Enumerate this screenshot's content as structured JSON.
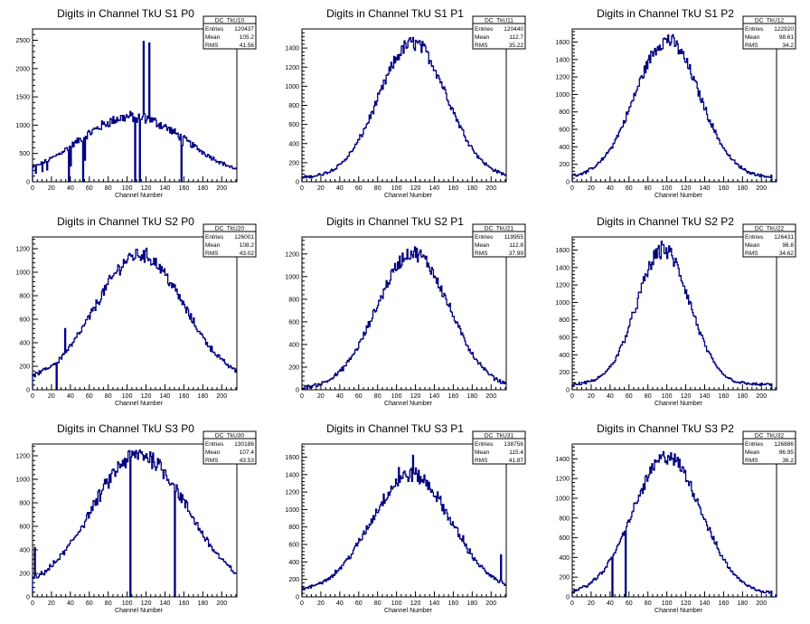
{
  "line_color": "#000080",
  "chart_data": [
    {
      "type": "line",
      "title": "Digits in Channel TkU S1 P0",
      "xlabel": "Channel Number",
      "ylabel": "",
      "xlim": [
        0,
        216
      ],
      "ylim": [
        0,
        2700
      ],
      "xticks": [
        0,
        20,
        40,
        60,
        80,
        100,
        120,
        140,
        160,
        180,
        200
      ],
      "yticks": [
        0,
        500,
        1000,
        1500,
        2000,
        2500
      ],
      "stats": {
        "name": "DC_TkU10",
        "entries": "120437",
        "mean": "105.2",
        "rms": "41.56"
      },
      "profile": {
        "center": 105,
        "sigma": 58,
        "peak": 1150,
        "base": 40,
        "noise": 0.08,
        "start": 0,
        "end": 215
      },
      "spikes": [
        {
          "x": 3,
          "y": 150
        },
        {
          "x": 10,
          "y": 180
        },
        {
          "x": 15,
          "y": 210
        },
        {
          "x": 40,
          "y": 280
        },
        {
          "x": 55,
          "y": 380
        },
        {
          "x": 110,
          "y": 1050
        },
        {
          "x": 114,
          "y": 1100
        },
        {
          "x": 117,
          "y": 2480
        },
        {
          "x": 123,
          "y": 2450
        },
        {
          "x": 158,
          "y": 640
        }
      ],
      "dips": [
        {
          "x": 38,
          "y": 0
        },
        {
          "x": 53,
          "y": 0
        },
        {
          "x": 108,
          "y": 0
        },
        {
          "x": 113,
          "y": 0
        },
        {
          "x": 157,
          "y": 0
        }
      ]
    },
    {
      "type": "line",
      "title": "Digits in Channel TkU S1 P1",
      "xlabel": "Channel Number",
      "ylabel": "",
      "xlim": [
        0,
        216
      ],
      "ylim": [
        0,
        1600
      ],
      "xticks": [
        0,
        20,
        40,
        60,
        80,
        100,
        120,
        140,
        160,
        180,
        200
      ],
      "yticks": [
        0,
        200,
        400,
        600,
        800,
        1000,
        1200,
        1400
      ],
      "stats": {
        "name": "DC_TkU11",
        "entries": "120440",
        "mean": "112.7",
        "rms": "35.22"
      },
      "profile": {
        "center": 117,
        "sigma": 36,
        "peak": 1450,
        "base": 40,
        "noise": 0.05,
        "start": 0,
        "end": 215
      },
      "spikes": [
        {
          "x": 117,
          "y": 1510
        }
      ],
      "dips": []
    },
    {
      "type": "line",
      "title": "Digits in Channel TkU S1 P2",
      "xlabel": "Channel Number",
      "ylabel": "",
      "xlim": [
        0,
        216
      ],
      "ylim": [
        0,
        1750
      ],
      "xticks": [
        0,
        20,
        40,
        60,
        80,
        100,
        120,
        140,
        160,
        180,
        200
      ],
      "yticks": [
        0,
        200,
        400,
        600,
        800,
        1000,
        1200,
        1400,
        1600
      ],
      "stats": {
        "name": "DC_TkU12",
        "entries": "122920",
        "mean": "98.61",
        "rms": "34.2"
      },
      "profile": {
        "center": 100,
        "sigma": 34,
        "peak": 1620,
        "base": 50,
        "noise": 0.05,
        "start": 0,
        "end": 210
      },
      "spikes": [
        {
          "x": 101,
          "y": 1680
        }
      ],
      "dips": []
    },
    {
      "type": "line",
      "title": "Digits in Channel TkU S2 P0",
      "xlabel": "Channel Number",
      "ylabel": "",
      "xlim": [
        0,
        216
      ],
      "ylim": [
        0,
        1300
      ],
      "xticks": [
        0,
        20,
        40,
        60,
        80,
        100,
        120,
        140,
        160,
        180,
        200
      ],
      "yticks": [
        0,
        200,
        400,
        600,
        800,
        1000,
        1200
      ],
      "stats": {
        "name": "DC_TkU20",
        "entries": "126001",
        "mean": "108.2",
        "rms": "43.02"
      },
      "profile": {
        "center": 113,
        "sigma": 46,
        "peak": 1150,
        "base": 70,
        "noise": 0.05,
        "start": 0,
        "end": 215
      },
      "spikes": [
        {
          "x": 34,
          "y": 520
        },
        {
          "x": 27,
          "y": 230
        }
      ],
      "dips": [
        {
          "x": 25,
          "y": 0
        }
      ]
    },
    {
      "type": "line",
      "title": "Digits in Channel TkU S2 P1",
      "xlabel": "Channel Number",
      "ylabel": "",
      "xlim": [
        0,
        216
      ],
      "ylim": [
        0,
        1350
      ],
      "xticks": [
        0,
        20,
        40,
        60,
        80,
        100,
        120,
        140,
        160,
        180,
        200
      ],
      "yticks": [
        0,
        200,
        400,
        600,
        800,
        1000,
        1200
      ],
      "stats": {
        "name": "DC_TkU21",
        "entries": "119955",
        "mean": "112.8",
        "rms": "37.99"
      },
      "profile": {
        "center": 117,
        "sigma": 38,
        "peak": 1210,
        "base": 10,
        "noise": 0.05,
        "start": 0,
        "end": 215
      },
      "spikes": [
        {
          "x": 121,
          "y": 1250
        }
      ],
      "dips": []
    },
    {
      "type": "line",
      "title": "Digits in Channel TkU S2 P2",
      "xlabel": "Channel Number",
      "ylabel": "",
      "xlim": [
        0,
        216
      ],
      "ylim": [
        0,
        1750
      ],
      "xticks": [
        0,
        20,
        40,
        60,
        80,
        100,
        120,
        140,
        160,
        180,
        200
      ],
      "yticks": [
        0,
        200,
        400,
        600,
        800,
        1000,
        1200,
        1400,
        1600
      ],
      "stats": {
        "name": "DC_TkU22",
        "entries": "126431",
        "mean": "96.8",
        "rms": "34.62"
      },
      "profile": {
        "center": 96,
        "sigma": 28,
        "peak": 1600,
        "base": 60,
        "noise": 0.06,
        "start": 0,
        "end": 210
      },
      "spikes": [
        {
          "x": 95,
          "y": 1660
        }
      ],
      "dips": []
    },
    {
      "type": "line",
      "title": "Digits in Channel TkU S3 P0",
      "xlabel": "Channel Number",
      "ylabel": "",
      "xlim": [
        0,
        216
      ],
      "ylim": [
        0,
        1300
      ],
      "xticks": [
        0,
        20,
        40,
        60,
        80,
        100,
        120,
        140,
        160,
        180,
        200
      ],
      "yticks": [
        0,
        200,
        400,
        600,
        800,
        1000,
        1200
      ],
      "stats": {
        "name": "DC_TkU30",
        "entries": "130186",
        "mean": "107.4",
        "rms": "43.53"
      },
      "profile": {
        "center": 113,
        "sigma": 50,
        "peak": 1210,
        "base": 60,
        "noise": 0.06,
        "start": 0,
        "end": 215
      },
      "spikes": [
        {
          "x": 2,
          "y": 420
        },
        {
          "x": 104,
          "y": 1190
        }
      ],
      "dips": [
        {
          "x": 103,
          "y": 0
        },
        {
          "x": 150,
          "y": 0
        }
      ]
    },
    {
      "type": "line",
      "title": "Digits in Channel TkU S3 P1",
      "xlabel": "Channel Number",
      "ylabel": "",
      "xlim": [
        0,
        216
      ],
      "ylim": [
        0,
        1750
      ],
      "xticks": [
        0,
        20,
        40,
        60,
        80,
        100,
        120,
        140,
        160,
        180,
        200
      ],
      "yticks": [
        0,
        200,
        400,
        600,
        800,
        1000,
        1200,
        1400,
        1600
      ],
      "stats": {
        "name": "DC_TkU31",
        "entries": "138756",
        "mean": "115.4",
        "rms": "41.87"
      },
      "profile": {
        "center": 115,
        "sigma": 42,
        "peak": 1400,
        "base": 60,
        "noise": 0.06,
        "start": 0,
        "end": 215
      },
      "spikes": [
        {
          "x": 117,
          "y": 1620
        },
        {
          "x": 102,
          "y": 1480
        },
        {
          "x": 170,
          "y": 700
        },
        {
          "x": 210,
          "y": 480
        }
      ],
      "dips": []
    },
    {
      "type": "line",
      "title": "Digits in Channel TkU S3 P2",
      "xlabel": "Channel Number",
      "ylabel": "",
      "xlim": [
        0,
        216
      ],
      "ylim": [
        0,
        1550
      ],
      "xticks": [
        0,
        20,
        40,
        60,
        80,
        100,
        120,
        140,
        160,
        180,
        200
      ],
      "yticks": [
        0,
        200,
        400,
        600,
        800,
        1000,
        1200,
        1400
      ],
      "stats": {
        "name": "DC_TkU32",
        "entries": "126886",
        "mean": "96.95",
        "rms": "36.2"
      },
      "profile": {
        "center": 100,
        "sigma": 36,
        "peak": 1420,
        "base": 30,
        "noise": 0.05,
        "start": 0,
        "end": 210
      },
      "spikes": [
        {
          "x": 50,
          "y": 560
        },
        {
          "x": 104,
          "y": 1460
        }
      ],
      "dips": [
        {
          "x": 42,
          "y": 0
        },
        {
          "x": 56,
          "y": 0
        }
      ]
    }
  ],
  "stats_labels": {
    "entries": "Entries",
    "mean": "Mean",
    "rms": "RMS"
  }
}
